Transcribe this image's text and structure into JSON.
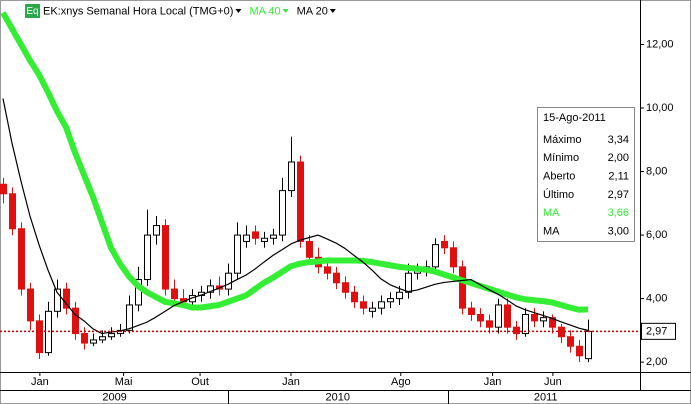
{
  "chart_data": {
    "type": "candlestick",
    "icon": "Eq",
    "title": "EK:xnys Semanal Hora Local (TMG+0)",
    "open": [
      7.6,
      7.3,
      6.2,
      4.3,
      3.3,
      2.3,
      3.6,
      4.3,
      3.7,
      2.9,
      2.6,
      2.7,
      2.8,
      2.9,
      3.0,
      3.8,
      4.6,
      6.0,
      6.3,
      4.3,
      4.0,
      3.9,
      4.1,
      4.2,
      4.4,
      4.3,
      4.8,
      5.8,
      6.1,
      5.8,
      5.9,
      6.0,
      7.4,
      8.3,
      5.8,
      5.3,
      5.0,
      4.8,
      4.5,
      4.2,
      3.9,
      3.6,
      3.7,
      3.9,
      4.0,
      4.2,
      4.8,
      4.9,
      5.0,
      5.8,
      5.6,
      5.0,
      3.7,
      3.5,
      3.3,
      3.1,
      3.8,
      3.1,
      2.9,
      3.5,
      3.3,
      3.4,
      3.1,
      2.8,
      2.5,
      2.11
    ],
    "high": [
      7.8,
      7.5,
      6.4,
      4.5,
      3.5,
      3.9,
      4.6,
      4.5,
      3.9,
      3.1,
      2.9,
      3.0,
      3.1,
      3.2,
      4.1,
      5.0,
      6.8,
      6.6,
      6.5,
      4.6,
      4.3,
      4.3,
      4.4,
      4.6,
      4.7,
      5.1,
      6.4,
      6.3,
      6.3,
      6.1,
      6.2,
      7.8,
      9.1,
      8.5,
      6.0,
      5.6,
      5.2,
      5.0,
      4.7,
      4.4,
      4.1,
      3.9,
      4.1,
      4.2,
      4.4,
      5.1,
      5.1,
      5.2,
      5.9,
      6.0,
      5.8,
      5.2,
      3.9,
      3.7,
      3.5,
      4.0,
      4.0,
      3.3,
      3.7,
      3.7,
      3.6,
      3.5,
      3.2,
      3.0,
      2.7,
      3.34
    ],
    "low": [
      7.0,
      6.0,
      4.1,
      3.0,
      2.1,
      2.2,
      3.4,
      3.5,
      2.7,
      2.4,
      2.5,
      2.6,
      2.7,
      2.8,
      2.9,
      3.6,
      4.4,
      5.7,
      4.1,
      3.8,
      3.7,
      3.7,
      3.9,
      4.0,
      4.1,
      4.1,
      4.6,
      5.6,
      5.7,
      5.6,
      5.7,
      5.8,
      7.2,
      5.6,
      5.1,
      4.8,
      4.6,
      4.3,
      4.0,
      3.7,
      3.5,
      3.4,
      3.5,
      3.7,
      3.8,
      4.0,
      4.6,
      4.7,
      4.8,
      5.4,
      4.8,
      3.5,
      3.3,
      3.1,
      2.9,
      2.9,
      2.9,
      2.7,
      2.8,
      3.1,
      3.1,
      2.9,
      2.6,
      2.3,
      2.0,
      2.0
    ],
    "close": [
      7.3,
      6.2,
      4.3,
      3.3,
      2.3,
      3.6,
      4.3,
      3.7,
      2.9,
      2.6,
      2.7,
      2.8,
      2.9,
      3.0,
      3.8,
      4.6,
      6.0,
      6.3,
      4.3,
      4.0,
      3.9,
      4.1,
      4.2,
      4.4,
      4.3,
      4.8,
      6.0,
      6.0,
      5.9,
      5.9,
      6.0,
      7.4,
      8.3,
      5.8,
      5.3,
      5.0,
      4.8,
      4.5,
      4.2,
      3.9,
      3.7,
      3.7,
      3.9,
      4.0,
      4.2,
      4.8,
      4.9,
      5.0,
      5.7,
      5.6,
      5.0,
      3.7,
      3.5,
      3.3,
      3.1,
      3.8,
      3.1,
      2.9,
      3.5,
      3.3,
      3.4,
      3.1,
      2.8,
      2.5,
      2.2,
      2.97
    ],
    "up_color": "#ffffff",
    "down_color": "#e01010",
    "series": [
      {
        "name": "MA 40",
        "color": "#33ee33",
        "values": [
          13.0,
          12.5,
          12.0,
          11.5,
          11.05,
          10.5,
          9.9,
          9.4,
          8.6,
          7.9,
          7.2,
          6.4,
          5.6,
          5.1,
          4.7,
          4.4,
          4.2,
          4.05,
          3.9,
          3.85,
          3.8,
          3.72,
          3.72,
          3.76,
          3.8,
          3.9,
          4.0,
          4.1,
          4.3,
          4.5,
          4.66,
          4.84,
          5.02,
          5.1,
          5.15,
          5.17,
          5.2,
          5.2,
          5.2,
          5.2,
          5.19,
          5.15,
          5.1,
          5.05,
          5.0,
          4.97,
          4.94,
          4.91,
          4.85,
          4.76,
          4.67,
          4.58,
          4.49,
          4.4,
          4.31,
          4.22,
          4.13,
          4.04,
          3.98,
          3.95,
          3.92,
          3.88,
          3.8,
          3.72,
          3.65,
          3.66
        ]
      },
      {
        "name": "MA 20",
        "color": "#000000",
        "values": [
          10.3,
          8.9,
          7.7,
          6.6,
          5.7,
          4.9,
          4.2,
          3.85,
          3.5,
          3.3,
          3.05,
          2.9,
          2.95,
          2.98,
          3.05,
          3.15,
          3.26,
          3.42,
          3.6,
          3.78,
          3.9,
          4.02,
          4.11,
          4.22,
          4.33,
          4.45,
          4.6,
          4.74,
          4.93,
          5.15,
          5.36,
          5.54,
          5.72,
          5.84,
          5.92,
          6.0,
          5.88,
          5.75,
          5.58,
          5.36,
          5.15,
          4.9,
          4.62,
          4.44,
          4.32,
          4.22,
          4.27,
          4.36,
          4.45,
          4.51,
          4.54,
          4.57,
          4.6,
          4.44,
          4.28,
          4.14,
          3.96,
          3.77,
          3.65,
          3.56,
          3.47,
          3.38,
          3.27,
          3.17,
          3.07,
          3.0
        ]
      }
    ],
    "xlim": [
      -0.33,
      70.78
    ],
    "xticks": [
      {
        "value": 4.1,
        "label": "Jan"
      },
      {
        "value": 13.4,
        "label": "Mai"
      },
      {
        "value": 21.9,
        "label": "Out"
      },
      {
        "value": 32.0,
        "label": "Jan"
      },
      {
        "value": 44.2,
        "label": "Ago"
      },
      {
        "value": 54.4,
        "label": "Jan"
      },
      {
        "value": 61.1,
        "label": "Jun"
      }
    ],
    "year_ticks": [
      {
        "value": 12.4,
        "label": "2009"
      },
      {
        "value": 37.2,
        "label": "2010"
      },
      {
        "value": 60.3,
        "label": "2011"
      }
    ],
    "ylim": [
      1.69,
      13.4
    ],
    "yticks": [
      {
        "value": 2,
        "label": "2,00"
      },
      {
        "value": 4,
        "label": "4,00"
      },
      {
        "value": 6,
        "label": "6,00"
      },
      {
        "value": 8,
        "label": "8,00"
      },
      {
        "value": 10,
        "label": "10,00"
      },
      {
        "value": 12,
        "label": "12,00"
      }
    ],
    "last_price": {
      "value": 2.97,
      "label": "2,97",
      "color": "#cc0000"
    },
    "tooltip": {
      "date": "15-Ago-2011",
      "rows": [
        {
          "label": "Máximo",
          "value": "3,34"
        },
        {
          "label": "Mínimo",
          "value": "2,00"
        },
        {
          "label": "Aberto",
          "value": "2,11"
        },
        {
          "label": "Último",
          "value": "2,97"
        },
        {
          "label": "MA",
          "value": "3,66",
          "color": "#33ee33"
        },
        {
          "label": "MA",
          "value": "3,00"
        }
      ]
    }
  }
}
